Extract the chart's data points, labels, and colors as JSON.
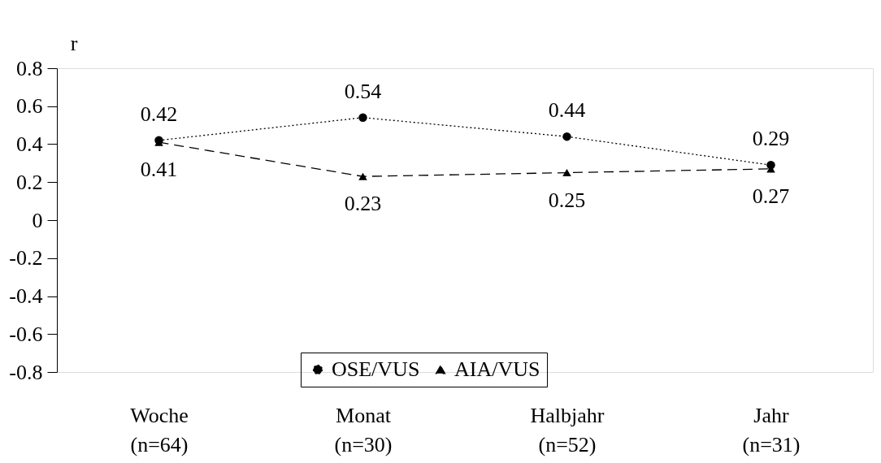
{
  "chart_data": {
    "type": "line",
    "ylabel": "r",
    "categories": [
      "Woche\n(n=64)",
      "Monat\n(n=30)",
      "Halbjahr\n(n=52)",
      "Jahr\n(n=31)"
    ],
    "series": [
      {
        "name": "OSE/VUS",
        "color": "#000000",
        "values": [
          0.42,
          0.54,
          0.44,
          0.29
        ],
        "marker": "circle",
        "line_style": "dotted"
      },
      {
        "name": "AIA/VUS",
        "color": "#000000",
        "values": [
          0.41,
          0.23,
          0.25,
          0.27
        ],
        "marker": "triangle",
        "line_style": "dashed"
      }
    ],
    "ylim": [
      -0.8,
      0.8
    ],
    "yticks": [
      -0.8,
      -0.6,
      -0.4,
      -0.2,
      0,
      0.2,
      0.4,
      0.6,
      0.8
    ],
    "data_labels": true,
    "grid": false,
    "legend": "bottom"
  }
}
